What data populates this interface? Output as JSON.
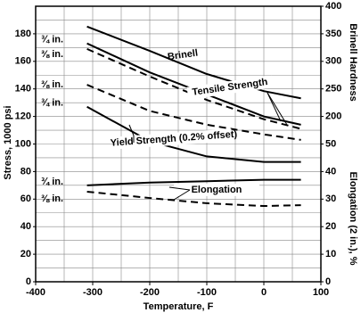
{
  "chart_data": {
    "type": "line",
    "x_label": "Temperature, F",
    "y_label": "Stress, 1000 psi",
    "y2_label": "Brinell Hardness",
    "y3_label": "Elongation (2 in.), %",
    "xlim": [
      -400,
      100
    ],
    "xticks": [
      -400,
      -300,
      -200,
      -100,
      0,
      100
    ],
    "ylim": [
      0,
      200
    ],
    "yticks": [
      0,
      20,
      40,
      60,
      80,
      100,
      120,
      140,
      160,
      180
    ],
    "y2lim": [
      -100,
      400
    ],
    "y2ticks": [
      200,
      250,
      300,
      350,
      400
    ],
    "y3lim": [
      0,
      100
    ],
    "y3ticks": [
      0,
      10,
      20,
      30,
      40,
      50
    ],
    "grid": true,
    "xgrid": [
      -400,
      -350,
      -300,
      -250,
      -200,
      -150,
      -100,
      -50,
      0,
      50,
      100
    ],
    "ygrid": [
      0,
      10,
      20,
      30,
      40,
      50,
      60,
      70,
      80,
      90,
      100,
      110,
      120,
      130,
      140,
      150,
      160,
      170,
      180,
      190,
      200
    ],
    "x": [
      -310,
      -200,
      -100,
      0,
      65
    ],
    "series": [
      {
        "name": "Brinell",
        "group": "Brinell",
        "color": "#000",
        "style": "solid",
        "axis": "y2",
        "values": [
          363,
          319,
          277,
          246,
          233
        ]
      },
      {
        "name": "¾ in.",
        "group": "Tensile",
        "color": "#000",
        "style": "solid",
        "axis": "y",
        "values": [
          173,
          152,
          136,
          120,
          114
        ]
      },
      {
        "name": "⅜ in.",
        "group": "Tensile",
        "color": "#000",
        "style": "dashed",
        "axis": "y",
        "values": [
          169,
          149,
          132,
          118,
          111
        ]
      },
      {
        "name": "⅜ in.",
        "group": "Yield",
        "color": "#000",
        "style": "dashed",
        "axis": "y",
        "values": [
          143,
          124,
          114,
          107,
          103
        ]
      },
      {
        "name": "¾ in.",
        "group": "Yield",
        "color": "#000",
        "style": "solid",
        "axis": "y",
        "values": [
          127,
          102,
          91,
          87,
          87
        ]
      },
      {
        "name": "¾ in.",
        "group": "Elongation",
        "color": "#000",
        "style": "solid",
        "axis": "y3",
        "values": [
          35,
          36,
          36.5,
          37,
          37
        ]
      },
      {
        "name": "⅜ in.",
        "group": "Elongation",
        "color": "#000",
        "style": "dashed",
        "axis": "y3",
        "values": [
          32.7,
          30.4,
          28.5,
          27.5,
          27.8
        ]
      }
    ],
    "annotations": [
      "Tensile Strength",
      "Yield Strength (0.2% offset)",
      "Elongation"
    ]
  }
}
